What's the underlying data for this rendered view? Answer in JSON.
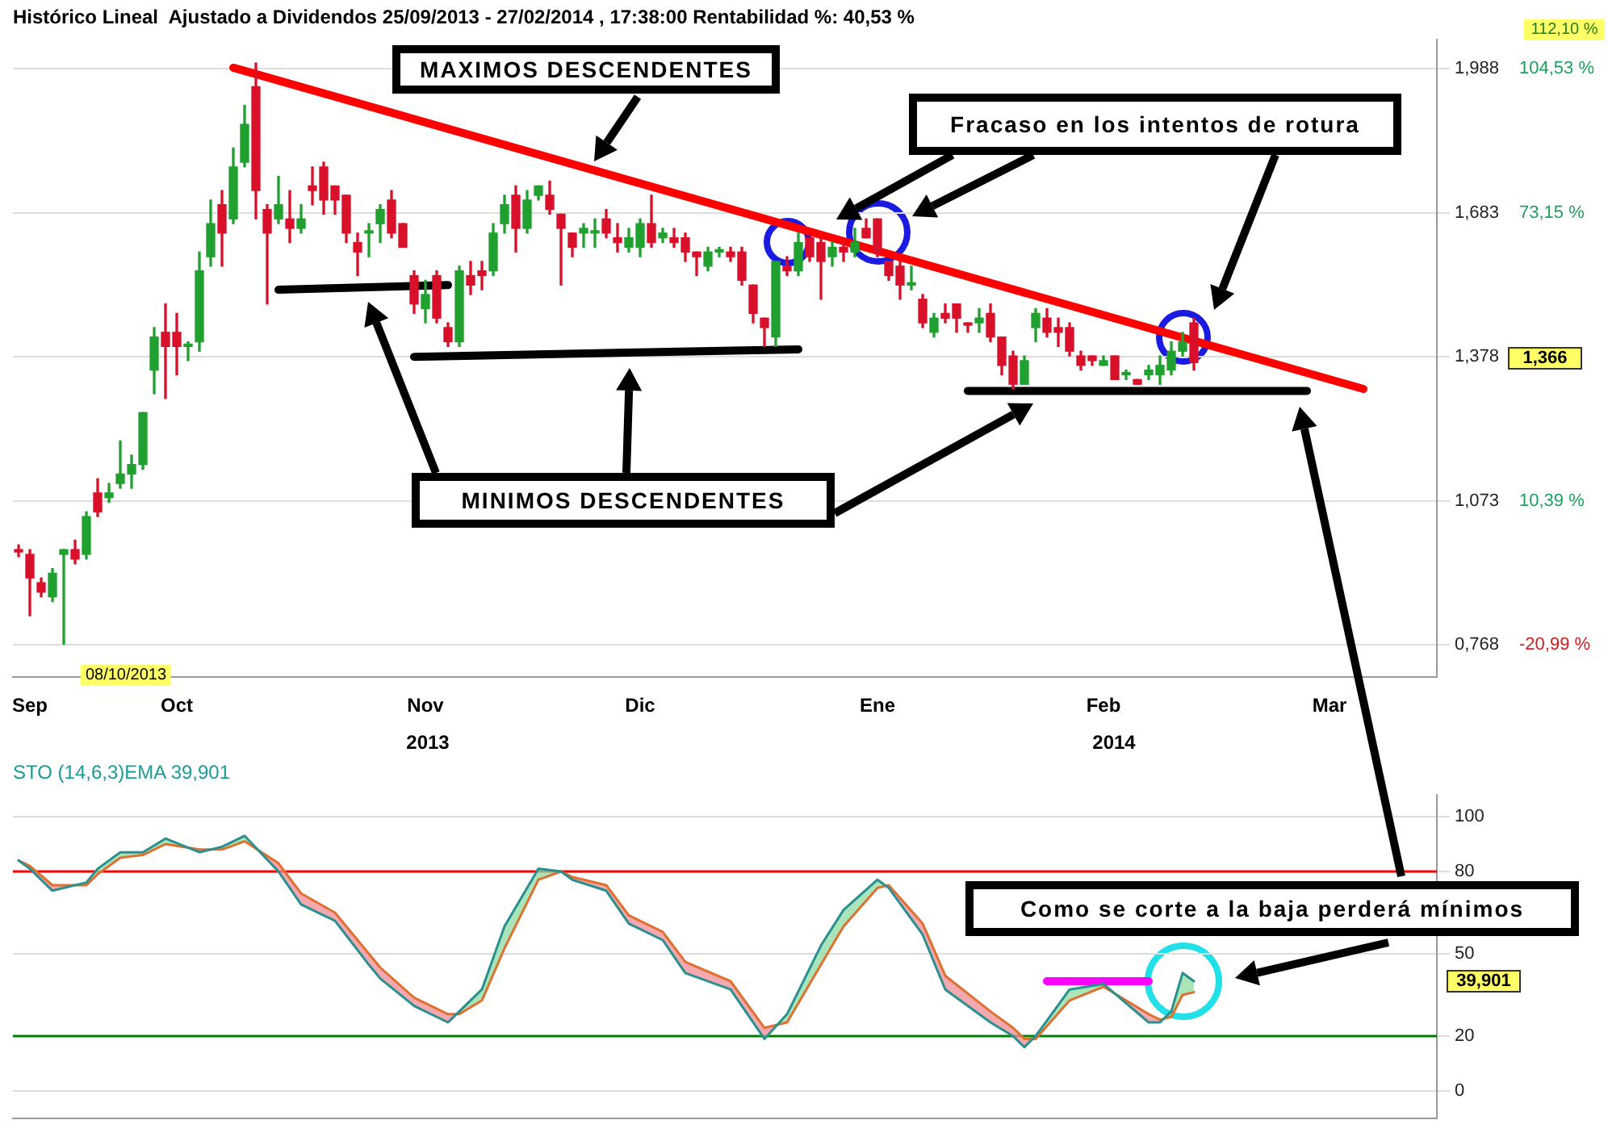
{
  "chart_data": [
    {
      "type": "candlestick",
      "title": "Histórico Lineal  Ajustado a Dividendos 25/09/2013 - 27/02/2014 , 17:38:00 Rentabilidad %: 40,53 %",
      "categories": [
        null,
        "Sep",
        null,
        null,
        null,
        null,
        null,
        null,
        null,
        null,
        null,
        null,
        null,
        null,
        "Oct",
        null,
        null,
        null,
        null,
        null,
        null,
        null,
        null,
        null,
        null,
        null,
        null,
        null,
        null,
        null,
        null,
        null,
        null,
        null,
        null,
        null,
        "Nov",
        null,
        null,
        null,
        null,
        null,
        null,
        null,
        null,
        null,
        null,
        null,
        null,
        null,
        null,
        null,
        null,
        null,
        null,
        "Dic",
        null,
        null,
        null,
        null,
        null,
        null,
        null,
        null,
        null,
        null,
        null,
        null,
        null,
        null,
        null,
        null,
        null,
        null,
        null,
        null,
        "Ene",
        null,
        null,
        null,
        null,
        null,
        null,
        null,
        null,
        null,
        null,
        null,
        null,
        null,
        null,
        null,
        null,
        null,
        null,
        null,
        "Feb",
        null,
        null,
        null,
        null,
        null,
        null,
        null,
        null,
        null,
        null,
        null,
        null,
        null,
        null,
        null,
        null,
        null,
        null,
        null,
        "Mar",
        null,
        null,
        null,
        null,
        null,
        null,
        null,
        null,
        null
      ],
      "ohlc": [
        [
          0.97,
          0.98,
          0.955,
          0.965
        ],
        [
          0.96,
          0.97,
          0.83,
          0.91
        ],
        [
          0.9,
          0.91,
          0.87,
          0.88
        ],
        [
          0.87,
          0.93,
          0.86,
          0.92
        ],
        [
          0.96,
          0.97,
          0.77,
          0.97
        ],
        [
          0.97,
          0.99,
          0.94,
          0.95
        ],
        [
          0.96,
          1.05,
          0.95,
          1.04
        ],
        [
          1.09,
          1.12,
          1.04,
          1.05
        ],
        [
          1.08,
          1.11,
          1.07,
          1.09
        ],
        [
          1.11,
          1.2,
          1.1,
          1.13
        ],
        [
          1.13,
          1.17,
          1.1,
          1.15
        ],
        [
          1.15,
          1.26,
          1.14,
          1.26
        ],
        [
          1.35,
          1.44,
          1.3,
          1.42
        ],
        [
          1.43,
          1.49,
          1.29,
          1.4
        ],
        [
          1.43,
          1.47,
          1.34,
          1.4
        ],
        [
          1.4,
          1.41,
          1.37,
          1.405
        ],
        [
          1.41,
          1.6,
          1.39,
          1.56
        ],
        [
          1.59,
          1.71,
          1.57,
          1.66
        ],
        [
          1.7,
          1.73,
          1.57,
          1.64
        ],
        [
          1.67,
          1.82,
          1.66,
          1.78
        ],
        [
          1.79,
          1.91,
          1.78,
          1.87
        ],
        [
          1.95,
          2.0,
          1.67,
          1.73
        ],
        [
          1.69,
          1.7,
          1.49,
          1.64
        ],
        [
          1.67,
          1.76,
          1.66,
          1.7
        ],
        [
          1.67,
          1.73,
          1.62,
          1.65
        ],
        [
          1.65,
          1.7,
          1.64,
          1.67
        ],
        [
          1.74,
          1.78,
          1.7,
          1.73
        ],
        [
          1.78,
          1.79,
          1.68,
          1.71
        ],
        [
          1.74,
          1.74,
          1.68,
          1.71
        ],
        [
          1.72,
          1.72,
          1.62,
          1.64
        ],
        [
          1.62,
          1.64,
          1.55,
          1.6
        ],
        [
          1.64,
          1.66,
          1.59,
          1.645
        ],
        [
          1.66,
          1.7,
          1.62,
          1.69
        ],
        [
          1.71,
          1.73,
          1.63,
          1.64
        ],
        [
          1.66,
          1.66,
          1.61,
          1.61
        ],
        [
          1.55,
          1.56,
          1.47,
          1.49
        ],
        [
          1.48,
          1.54,
          1.45,
          1.51
        ],
        [
          1.55,
          1.56,
          1.45,
          1.46
        ],
        [
          1.44,
          1.45,
          1.4,
          1.41
        ],
        [
          1.41,
          1.57,
          1.4,
          1.56
        ],
        [
          1.55,
          1.58,
          1.51,
          1.53
        ],
        [
          1.56,
          1.58,
          1.52,
          1.55
        ],
        [
          1.56,
          1.66,
          1.55,
          1.64
        ],
        [
          1.66,
          1.72,
          1.64,
          1.7
        ],
        [
          1.72,
          1.74,
          1.6,
          1.65
        ],
        [
          1.65,
          1.73,
          1.64,
          1.71
        ],
        [
          1.72,
          1.74,
          1.71,
          1.74
        ],
        [
          1.72,
          1.75,
          1.68,
          1.69
        ],
        [
          1.68,
          1.68,
          1.53,
          1.65
        ],
        [
          1.64,
          1.64,
          1.59,
          1.61
        ],
        [
          1.64,
          1.66,
          1.61,
          1.65
        ],
        [
          1.64,
          1.67,
          1.61,
          1.645
        ],
        [
          1.67,
          1.69,
          1.63,
          1.64
        ],
        [
          1.63,
          1.66,
          1.6,
          1.62
        ],
        [
          1.61,
          1.65,
          1.6,
          1.63
        ],
        [
          1.61,
          1.67,
          1.59,
          1.66
        ],
        [
          1.66,
          1.72,
          1.61,
          1.62
        ],
        [
          1.63,
          1.65,
          1.62,
          1.64
        ],
        [
          1.63,
          1.65,
          1.61,
          1.62
        ],
        [
          1.63,
          1.64,
          1.58,
          1.6
        ],
        [
          1.6,
          1.6,
          1.55,
          1.59
        ],
        [
          1.57,
          1.61,
          1.56,
          1.6
        ],
        [
          1.6,
          1.61,
          1.59,
          1.605
        ],
        [
          1.6,
          1.61,
          1.58,
          1.59
        ],
        [
          1.6,
          1.61,
          1.53,
          1.54
        ],
        [
          1.53,
          1.53,
          1.45,
          1.47
        ],
        [
          1.46,
          1.46,
          1.4,
          1.44
        ],
        [
          1.42,
          1.58,
          1.4,
          1.58
        ],
        [
          1.57,
          1.59,
          1.55,
          1.56
        ],
        [
          1.56,
          1.64,
          1.55,
          1.62
        ],
        [
          1.63,
          1.63,
          1.58,
          1.59
        ],
        [
          1.62,
          1.63,
          1.5,
          1.58
        ],
        [
          1.59,
          1.62,
          1.57,
          1.61
        ],
        [
          1.61,
          1.62,
          1.58,
          1.6
        ],
        [
          1.6,
          1.65,
          1.59,
          1.62
        ],
        [
          1.65,
          1.67,
          1.63,
          1.63
        ],
        [
          1.67,
          1.67,
          1.59,
          1.6
        ],
        [
          1.58,
          1.58,
          1.54,
          1.55
        ],
        [
          1.57,
          1.58,
          1.5,
          1.53
        ],
        [
          1.53,
          1.57,
          1.52,
          1.535
        ],
        [
          1.5,
          1.51,
          1.44,
          1.45
        ],
        [
          1.43,
          1.47,
          1.42,
          1.46
        ],
        [
          1.47,
          1.49,
          1.45,
          1.46
        ],
        [
          1.49,
          1.49,
          1.43,
          1.46
        ],
        [
          1.45,
          1.45,
          1.43,
          1.445
        ],
        [
          1.45,
          1.48,
          1.43,
          1.46
        ],
        [
          1.47,
          1.49,
          1.41,
          1.42
        ],
        [
          1.42,
          1.42,
          1.34,
          1.36
        ],
        [
          1.38,
          1.39,
          1.31,
          1.32
        ],
        [
          1.32,
          1.38,
          1.32,
          1.37
        ],
        [
          1.44,
          1.48,
          1.41,
          1.47
        ],
        [
          1.46,
          1.48,
          1.42,
          1.43
        ],
        [
          1.44,
          1.46,
          1.4,
          1.43
        ],
        [
          1.44,
          1.45,
          1.38,
          1.39
        ],
        [
          1.38,
          1.39,
          1.35,
          1.36
        ],
        [
          1.38,
          1.38,
          1.36,
          1.37
        ],
        [
          1.36,
          1.38,
          1.36,
          1.37
        ],
        [
          1.38,
          1.38,
          1.33,
          1.33
        ],
        [
          1.34,
          1.35,
          1.33,
          1.345
        ],
        [
          1.33,
          1.33,
          1.32,
          1.32
        ],
        [
          1.34,
          1.36,
          1.33,
          1.35
        ],
        [
          1.34,
          1.38,
          1.32,
          1.36
        ],
        [
          1.35,
          1.41,
          1.34,
          1.39
        ],
        [
          1.39,
          1.43,
          1.38,
          1.41
        ],
        [
          1.45,
          1.46,
          1.35,
          1.366
        ],
        null,
        null,
        null,
        null,
        null,
        null,
        null,
        null,
        null,
        null,
        null,
        null,
        null,
        null,
        null,
        null,
        null,
        null,
        null,
        null,
        null
      ],
      "series": [
        {
          "type": "line",
          "color": "#ff0000",
          "values": [
            null,
            null,
            null,
            null,
            null,
            null,
            null,
            null,
            null,
            null,
            null,
            null,
            null,
            null,
            null,
            null,
            null,
            null,
            null,
            1.99,
            null,
            null,
            null,
            null,
            null,
            null,
            null,
            null,
            null,
            null,
            null,
            null,
            null,
            null,
            null,
            null,
            null,
            null,
            null,
            null,
            null,
            null,
            null,
            null,
            null,
            null,
            null,
            null,
            null,
            null,
            null,
            null,
            null,
            null,
            null,
            null,
            null,
            null,
            null,
            null,
            null,
            null,
            null,
            null,
            null,
            null,
            null,
            null,
            null,
            null,
            null,
            null,
            null,
            null,
            null,
            null,
            null,
            null,
            null,
            null,
            null,
            null,
            null,
            null,
            null,
            null,
            null,
            null,
            null,
            null,
            null,
            null,
            null,
            null,
            null,
            null,
            null,
            null,
            null,
            null,
            null,
            null,
            null,
            null,
            null,
            null,
            null,
            null,
            null,
            null,
            null,
            null,
            null,
            null,
            null,
            null,
            null,
            null,
            null,
            1.31,
            null,
            null,
            null,
            null,
            null,
            null
          ]
        },
        {
          "type": "line",
          "color": "#000000",
          "values": [
            null,
            null,
            null,
            null,
            null,
            null,
            null,
            null,
            null,
            null,
            null,
            null,
            null,
            null,
            null,
            null,
            null,
            null,
            null,
            null,
            null,
            null,
            null,
            1.52,
            null,
            null,
            null,
            null,
            null,
            null,
            null,
            null,
            null,
            null,
            null,
            null,
            null,
            null,
            1.53,
            null,
            null,
            null,
            null,
            null,
            null,
            null,
            null,
            null,
            null,
            null,
            null,
            null,
            null,
            null,
            null,
            null,
            null,
            null,
            null,
            null,
            null,
            null,
            null,
            null,
            null,
            null,
            null,
            null,
            null,
            null,
            null,
            null,
            null,
            null,
            null,
            null,
            null,
            null,
            null,
            null,
            null,
            null,
            null,
            null,
            null,
            null,
            null,
            null,
            null,
            null,
            null,
            null,
            null,
            null,
            null,
            null,
            null,
            null,
            null,
            null,
            null,
            null,
            null,
            null,
            null,
            null,
            null,
            null,
            null,
            null,
            null,
            null,
            null,
            null,
            null,
            null,
            null,
            null,
            null,
            null,
            null,
            null,
            null,
            null,
            null,
            null
          ]
        },
        {
          "type": "line",
          "color": "#000000",
          "values": [
            null,
            null,
            null,
            null,
            null,
            null,
            null,
            null,
            null,
            null,
            null,
            null,
            null,
            null,
            null,
            null,
            null,
            null,
            null,
            null,
            null,
            null,
            null,
            null,
            null,
            null,
            null,
            null,
            null,
            null,
            null,
            null,
            null,
            null,
            null,
            1.378,
            null,
            null,
            null,
            null,
            null,
            null,
            null,
            null,
            null,
            null,
            null,
            null,
            null,
            null,
            null,
            null,
            null,
            null,
            null,
            null,
            null,
            null,
            null,
            null,
            null,
            null,
            null,
            null,
            null,
            null,
            null,
            null,
            null,
            1.394,
            null,
            null,
            null,
            null,
            null,
            null,
            null,
            null,
            null,
            null,
            null,
            null,
            null,
            null,
            null,
            null,
            null,
            null,
            null,
            null,
            null,
            null,
            null,
            null,
            null,
            null,
            null,
            null,
            null,
            null,
            null,
            null,
            null,
            null,
            null,
            null,
            null,
            null,
            null,
            null,
            null,
            null,
            null,
            null,
            null,
            null,
            null,
            null,
            null,
            null,
            null,
            null,
            null,
            null,
            null,
            null
          ]
        },
        {
          "type": "line",
          "color": "#000000",
          "values": [
            null,
            null,
            null,
            null,
            null,
            null,
            null,
            null,
            null,
            null,
            null,
            null,
            null,
            null,
            null,
            null,
            null,
            null,
            null,
            null,
            null,
            null,
            null,
            null,
            null,
            null,
            null,
            null,
            null,
            null,
            null,
            null,
            null,
            null,
            null,
            null,
            null,
            null,
            null,
            null,
            null,
            null,
            null,
            null,
            null,
            null,
            null,
            null,
            null,
            null,
            null,
            null,
            null,
            null,
            null,
            null,
            null,
            null,
            null,
            null,
            null,
            null,
            null,
            null,
            null,
            null,
            null,
            null,
            null,
            null,
            null,
            null,
            null,
            null,
            null,
            null,
            null,
            null,
            null,
            null,
            null,
            null,
            null,
            null,
            1.306,
            null,
            null,
            null,
            null,
            null,
            null,
            null,
            null,
            null,
            null,
            null,
            null,
            null,
            null,
            null,
            null,
            null,
            null,
            null,
            null,
            null,
            null,
            null,
            null,
            null,
            null,
            null,
            null,
            null,
            1.306,
            null,
            null,
            null,
            null,
            null,
            null,
            null,
            null,
            null,
            null,
            null
          ]
        }
      ],
      "ylim": [
        0.7,
        2.05
      ],
      "yticks": [
        {
          "value": 0.768,
          "label": "0,768"
        },
        {
          "value": 1.073,
          "label": "1,073"
        },
        {
          "value": 1.378,
          "label": "1,378"
        },
        {
          "value": 1.683,
          "label": "1,683"
        },
        {
          "value": 1.988,
          "label": "1,988"
        }
      ],
      "y2lim": [
        -27.99,
        110.89
      ],
      "y2ticks": [
        {
          "value": -20.99,
          "label": "-20,99 %"
        },
        {
          "value": 10.39,
          "label": "10,39 %"
        },
        {
          "value": 73.15,
          "label": "73,15 %"
        },
        {
          "value": 104.53,
          "label": "104,53 %"
        }
      ],
      "grid": "y",
      "annotations": [
        "MAXIMOS  DESCENDENTES",
        "Fracaso en los intentos de rotura",
        "MINIMOS DESCENDENTES",
        "08/10/2013",
        "2013",
        "2014",
        "112,10 %",
        "1,366"
      ]
    },
    {
      "type": "line",
      "title": "STO (14,6,3)EMA 39,901",
      "categories": [
        null,
        null,
        null,
        null,
        null,
        null,
        null,
        null,
        null,
        null,
        null,
        null,
        null,
        null,
        null,
        null,
        null,
        null,
        null,
        null,
        null,
        null,
        null,
        null,
        null,
        null,
        null,
        null,
        null,
        null,
        null,
        null,
        null,
        null,
        null,
        null,
        null,
        null,
        null,
        null,
        null,
        null,
        null,
        null,
        null,
        null,
        null,
        null,
        null,
        null,
        null,
        null,
        null,
        null,
        null,
        null,
        null,
        null,
        null,
        null,
        null,
        null,
        null,
        null,
        null,
        null,
        null,
        null,
        null,
        null,
        null,
        null,
        null,
        null,
        null,
        null,
        null,
        null,
        null,
        null,
        null,
        null,
        null,
        null,
        null,
        null,
        null,
        null,
        null,
        null,
        null,
        null,
        null,
        null,
        null,
        null,
        null,
        null,
        null,
        null,
        null,
        null,
        null,
        null,
        null,
        null,
        null,
        null,
        null,
        null,
        null,
        null,
        null,
        null,
        null,
        null,
        null,
        null,
        null,
        null,
        null,
        null,
        null,
        null,
        null,
        null
      ],
      "series": [
        {
          "color": "#2a8f8f",
          "values": [
            84,
            81,
            null,
            73,
            null,
            null,
            76,
            81,
            null,
            87,
            null,
            87,
            null,
            92,
            null,
            null,
            87,
            null,
            89,
            null,
            93,
            null,
            null,
            80,
            null,
            68,
            null,
            null,
            62,
            null,
            null,
            46,
            41,
            null,
            null,
            31,
            null,
            null,
            25,
            29,
            null,
            37,
            null,
            60,
            null,
            null,
            81,
            null,
            80,
            77,
            null,
            null,
            73,
            null,
            61,
            null,
            null,
            55,
            null,
            43,
            null,
            null,
            null,
            37,
            null,
            null,
            19,
            null,
            28,
            null,
            null,
            53,
            null,
            66,
            null,
            null,
            77,
            74,
            null,
            null,
            57,
            null,
            37,
            null,
            null,
            null,
            25,
            null,
            20,
            16,
            20,
            null,
            null,
            37,
            null,
            null,
            39,
            null,
            null,
            null,
            25,
            25,
            29,
            43,
            40,
            null,
            null,
            null,
            null,
            null,
            null,
            null,
            null,
            null,
            null,
            null,
            null,
            null,
            null,
            null,
            null,
            null,
            null,
            null,
            null,
            null
          ]
        },
        {
          "color": "#e07030",
          "values": [
            84,
            82,
            null,
            75,
            null,
            null,
            75,
            79,
            null,
            85,
            null,
            86,
            null,
            90,
            null,
            null,
            88,
            null,
            88,
            null,
            91,
            null,
            null,
            83,
            null,
            72,
            null,
            null,
            65,
            null,
            null,
            50,
            45,
            null,
            null,
            34,
            null,
            null,
            28,
            28,
            null,
            33,
            null,
            52,
            null,
            null,
            77,
            null,
            80,
            78,
            null,
            null,
            75,
            null,
            64,
            null,
            null,
            58,
            null,
            47,
            null,
            null,
            null,
            40,
            null,
            null,
            23,
            null,
            25,
            null,
            null,
            46,
            null,
            60,
            null,
            null,
            74,
            75,
            null,
            null,
            61,
            null,
            42,
            null,
            null,
            null,
            29,
            null,
            23,
            19,
            19,
            null,
            null,
            33,
            null,
            null,
            38,
            null,
            null,
            null,
            28,
            26,
            27,
            35,
            36,
            null,
            null,
            null,
            null,
            null,
            null,
            null,
            null,
            null,
            null,
            null,
            null,
            null,
            null,
            null,
            null,
            null,
            null,
            null,
            null,
            null
          ]
        },
        {
          "color": "#ff00ff",
          "values": [
            null,
            null,
            null,
            null,
            null,
            null,
            null,
            null,
            null,
            null,
            null,
            null,
            null,
            null,
            null,
            null,
            null,
            null,
            null,
            null,
            null,
            null,
            null,
            null,
            null,
            null,
            null,
            null,
            null,
            null,
            null,
            null,
            null,
            null,
            null,
            null,
            null,
            null,
            null,
            null,
            null,
            null,
            null,
            null,
            null,
            null,
            null,
            null,
            null,
            null,
            null,
            null,
            null,
            null,
            null,
            null,
            null,
            null,
            null,
            null,
            null,
            null,
            null,
            null,
            null,
            null,
            null,
            null,
            null,
            null,
            null,
            null,
            null,
            null,
            null,
            null,
            null,
            null,
            null,
            null,
            null,
            null,
            null,
            null,
            null,
            null,
            null,
            null,
            null,
            null,
            null,
            40,
            null,
            null,
            null,
            null,
            null,
            null,
            null,
            null,
            40,
            null,
            null,
            null,
            null,
            null,
            null,
            null,
            null,
            null,
            null,
            null,
            null,
            null,
            null,
            null,
            null,
            null,
            null,
            null,
            null,
            null,
            null,
            null,
            null,
            null
          ]
        }
      ],
      "ylim": [
        -10,
        108
      ],
      "yticks": [
        0,
        20,
        50,
        80,
        100
      ],
      "grid": "y",
      "tick_labels": "y",
      "ref_lines": [
        {
          "axis": "y",
          "value": 80,
          "color": "#ff0000"
        },
        {
          "axis": "y",
          "value": 20,
          "color": "#008000"
        }
      ],
      "annotations": [
        "Como se corte a la baja perderá mínimos",
        "39,901"
      ]
    }
  ]
}
